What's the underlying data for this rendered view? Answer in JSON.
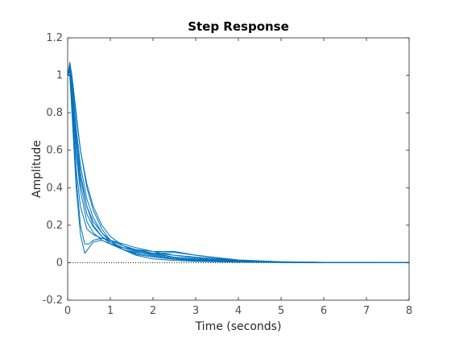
{
  "chart_data": {
    "type": "line",
    "title": "Step Response",
    "xlabel": "Time (seconds)",
    "ylabel": "Amplitude",
    "xlim": [
      0,
      8
    ],
    "ylim": [
      -0.2,
      1.2
    ],
    "xticks": [
      "0",
      "1",
      "2",
      "3",
      "4",
      "5",
      "6",
      "7",
      "8"
    ],
    "yticks": [
      "-0.2",
      "0",
      "0.2",
      "0.4",
      "0.6",
      "0.8",
      "1",
      "1.2"
    ],
    "grid": false,
    "legend": "none",
    "line_color": "#0072BD",
    "reference_line": {
      "y": 0,
      "style": "dotted",
      "color": "#000000"
    },
    "series": [
      {
        "x": [
          0,
          0.05,
          0.1,
          0.2,
          0.3,
          0.45,
          0.6,
          0.8,
          1.0,
          1.3,
          1.6,
          2.0,
          2.5,
          3.0,
          4.0,
          5.0,
          6.0,
          8.0
        ],
        "values": [
          1.0,
          1.07,
          1.0,
          0.8,
          0.6,
          0.42,
          0.3,
          0.2,
          0.14,
          0.09,
          0.06,
          0.04,
          0.025,
          0.015,
          0.006,
          0.003,
          0.001,
          0.0
        ]
      },
      {
        "x": [
          0,
          0.05,
          0.1,
          0.2,
          0.3,
          0.45,
          0.6,
          0.8,
          1.0,
          1.3,
          1.6,
          2.0,
          2.5,
          3.0,
          4.0,
          5.0,
          6.0,
          8.0
        ],
        "values": [
          1.0,
          1.05,
          0.95,
          0.72,
          0.52,
          0.34,
          0.24,
          0.16,
          0.11,
          0.07,
          0.045,
          0.03,
          0.018,
          0.01,
          0.004,
          0.002,
          0.001,
          0.0
        ]
      },
      {
        "x": [
          0,
          0.05,
          0.1,
          0.2,
          0.3,
          0.45,
          0.6,
          0.8,
          1.0,
          1.3,
          1.6,
          2.0,
          2.5,
          3.0,
          4.0,
          5.0,
          6.0,
          8.0
        ],
        "values": [
          1.0,
          1.06,
          0.9,
          0.6,
          0.42,
          0.26,
          0.19,
          0.14,
          0.11,
          0.08,
          0.06,
          0.045,
          0.03,
          0.02,
          0.008,
          0.003,
          0.001,
          0.0
        ]
      },
      {
        "x": [
          0,
          0.05,
          0.1,
          0.2,
          0.3,
          0.45,
          0.6,
          0.8,
          1.0,
          1.3,
          1.6,
          2.0,
          2.5,
          3.0,
          4.0,
          5.0,
          6.0,
          8.0
        ],
        "values": [
          1.0,
          1.02,
          0.85,
          0.5,
          0.3,
          0.18,
          0.15,
          0.13,
          0.12,
          0.1,
          0.08,
          0.06,
          0.04,
          0.025,
          0.01,
          0.004,
          0.001,
          0.0
        ]
      },
      {
        "x": [
          0,
          0.05,
          0.1,
          0.2,
          0.3,
          0.4,
          0.5,
          0.6,
          0.8,
          1.0,
          1.3,
          1.6,
          2.0,
          2.5,
          3.0,
          4.0,
          5.0,
          6.0,
          8.0
        ],
        "values": [
          1.0,
          1.0,
          0.8,
          0.4,
          0.15,
          0.05,
          0.08,
          0.11,
          0.12,
          0.1,
          0.07,
          0.05,
          0.035,
          0.02,
          0.012,
          0.005,
          0.002,
          0.0,
          0.0
        ]
      },
      {
        "x": [
          0,
          0.05,
          0.1,
          0.2,
          0.3,
          0.45,
          0.6,
          0.8,
          1.0,
          1.3,
          1.6,
          2.0,
          2.5,
          3.0,
          4.0,
          5.0,
          6.0,
          8.0
        ],
        "values": [
          1.0,
          1.04,
          0.92,
          0.68,
          0.48,
          0.3,
          0.2,
          0.14,
          0.1,
          0.07,
          0.055,
          0.05,
          0.055,
          0.04,
          0.015,
          0.005,
          0.002,
          0.0
        ]
      },
      {
        "x": [
          0,
          0.05,
          0.1,
          0.2,
          0.3,
          0.45,
          0.6,
          0.8,
          1.0,
          1.3,
          1.6,
          2.0,
          2.5,
          3.0,
          4.0,
          5.0,
          6.0,
          8.0
        ],
        "values": [
          1.0,
          1.03,
          0.9,
          0.65,
          0.45,
          0.3,
          0.22,
          0.16,
          0.12,
          0.09,
          0.07,
          0.06,
          0.06,
          0.04,
          0.012,
          0.004,
          0.001,
          0.0
        ]
      },
      {
        "x": [
          0,
          0.05,
          0.1,
          0.2,
          0.3,
          0.4,
          0.5,
          0.6,
          0.8,
          1.0,
          1.3,
          1.6,
          2.0,
          2.5,
          3.0,
          4.0,
          5.0,
          6.0,
          8.0
        ],
        "values": [
          1.0,
          1.0,
          0.82,
          0.45,
          0.2,
          0.1,
          0.1,
          0.12,
          0.13,
          0.12,
          0.09,
          0.07,
          0.05,
          0.03,
          0.018,
          0.007,
          0.003,
          0.001,
          0.0
        ]
      },
      {
        "x": [
          0,
          0.05,
          0.1,
          0.2,
          0.3,
          0.45,
          0.6,
          0.8,
          1.0,
          1.3,
          1.6,
          2.0,
          2.5,
          3.0,
          4.0,
          5.0,
          6.0,
          8.0
        ],
        "values": [
          1.0,
          1.05,
          0.97,
          0.78,
          0.6,
          0.4,
          0.28,
          0.18,
          0.12,
          0.07,
          0.04,
          0.02,
          0.012,
          0.007,
          0.003,
          0.001,
          0.0,
          0.0
        ]
      },
      {
        "x": [
          0,
          0.05,
          0.1,
          0.2,
          0.3,
          0.45,
          0.6,
          0.8,
          1.0,
          1.3,
          1.6,
          2.0,
          2.5,
          3.0,
          4.0,
          5.0,
          6.0,
          8.0
        ],
        "values": [
          1.0,
          1.02,
          0.88,
          0.58,
          0.38,
          0.22,
          0.16,
          0.12,
          0.1,
          0.08,
          0.065,
          0.05,
          0.04,
          0.03,
          0.012,
          0.005,
          0.002,
          0.0
        ]
      }
    ]
  }
}
